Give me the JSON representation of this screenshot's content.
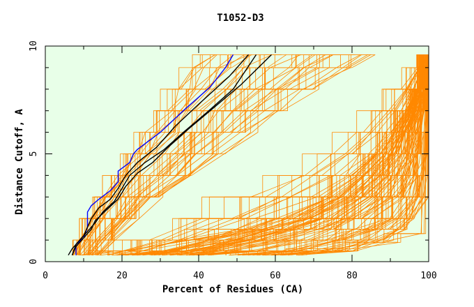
{
  "chart_data": {
    "type": "line",
    "title": "T1052-D3",
    "xlabel": "Percent of Residues (CA)",
    "ylabel": "Distance Cutoff, A",
    "xlim": [
      0,
      100
    ],
    "ylim": [
      0,
      10
    ],
    "xticks": [
      0,
      20,
      40,
      60,
      80,
      100
    ],
    "yticks": [
      0,
      5,
      10
    ],
    "grid": false,
    "colors": {
      "background": "#e8ffe8",
      "orange": "#ff8800",
      "black": "#000000",
      "blue": "#0000ff"
    },
    "highlight_series": [
      {
        "color": "#0000ff",
        "x": [
          8,
          8,
          10,
          11,
          11,
          12,
          14,
          17,
          19,
          19,
          22,
          23,
          24,
          30,
          36,
          43,
          47,
          49
        ],
        "y": [
          0.3,
          0.8,
          1.1,
          1.6,
          2.3,
          2.6,
          2.9,
          3.3,
          3.7,
          4.2,
          4.6,
          5.0,
          5.2,
          6.0,
          7.0,
          8.1,
          9.0,
          9.6
        ]
      },
      {
        "color": "#000000",
        "x": [
          7,
          8,
          10,
          11,
          12,
          14,
          17,
          19,
          21,
          24,
          29,
          34,
          40,
          48,
          53
        ],
        "y": [
          0.3,
          0.8,
          1.2,
          1.6,
          2.0,
          2.5,
          2.9,
          3.4,
          4.0,
          4.6,
          5.3,
          6.3,
          7.3,
          8.6,
          9.6
        ]
      },
      {
        "color": "#000000",
        "x": [
          6,
          7,
          9,
          11,
          13,
          15,
          18,
          20,
          22,
          26,
          31,
          36,
          42,
          49,
          55
        ],
        "y": [
          0.3,
          0.6,
          1.0,
          1.4,
          1.8,
          2.3,
          2.8,
          3.4,
          4.0,
          4.6,
          5.2,
          6.0,
          6.9,
          8.0,
          9.6
        ]
      },
      {
        "color": "#000000",
        "x": [
          7,
          8,
          10,
          12,
          13,
          16,
          19,
          21,
          24,
          28,
          32,
          37,
          43,
          51,
          59
        ],
        "y": [
          0.3,
          0.7,
          1.1,
          1.5,
          1.9,
          2.4,
          2.9,
          3.5,
          4.1,
          4.6,
          5.3,
          6.1,
          7.0,
          8.2,
          9.6
        ]
      }
    ],
    "orange_series_groups": [
      {
        "count": 48,
        "x_at_cutoff": [
          [
            0.3,
            7,
            14
          ],
          [
            1.0,
            9,
            18
          ],
          [
            2.0,
            12,
            24
          ],
          [
            3.0,
            15,
            30
          ],
          [
            4.0,
            19,
            38
          ],
          [
            5.0,
            23,
            46
          ],
          [
            6.0,
            27,
            54
          ],
          [
            7.0,
            31,
            62
          ],
          [
            8.0,
            35,
            70
          ],
          [
            9.0,
            39,
            80
          ],
          [
            9.6,
            42,
            86
          ]
        ]
      },
      {
        "count": 30,
        "x_at_cutoff": [
          [
            0.3,
            15,
            45
          ],
          [
            1.0,
            28,
            62
          ],
          [
            2.0,
            42,
            80
          ],
          [
            3.0,
            55,
            92
          ],
          [
            4.0,
            66,
            98
          ],
          [
            5.0,
            75,
            100
          ],
          [
            6.0,
            82,
            100
          ],
          [
            7.0,
            88,
            100
          ],
          [
            8.0,
            93,
            100
          ],
          [
            9.0,
            97,
            100
          ],
          [
            9.6,
            100,
            100
          ]
        ]
      },
      {
        "count": 110,
        "x_at_cutoff": [
          [
            0.3,
            8,
            65
          ],
          [
            0.5,
            18,
            80
          ],
          [
            1.0,
            35,
            90
          ],
          [
            1.5,
            50,
            94
          ],
          [
            2.0,
            60,
            97
          ],
          [
            3.0,
            72,
            100
          ],
          [
            4.0,
            80,
            100
          ],
          [
            5.0,
            86,
            100
          ],
          [
            6.0,
            90,
            100
          ],
          [
            7.0,
            94,
            100
          ],
          [
            8.0,
            97,
            100
          ],
          [
            9.6,
            100,
            100
          ]
        ]
      },
      {
        "count": 4,
        "x_at_cutoff": [
          [
            0.3,
            62,
            72
          ],
          [
            0.6,
            75,
            85
          ],
          [
            0.9,
            88,
            96
          ],
          [
            1.3,
            98,
            100
          ],
          [
            9.6,
            100,
            100
          ]
        ]
      }
    ]
  }
}
